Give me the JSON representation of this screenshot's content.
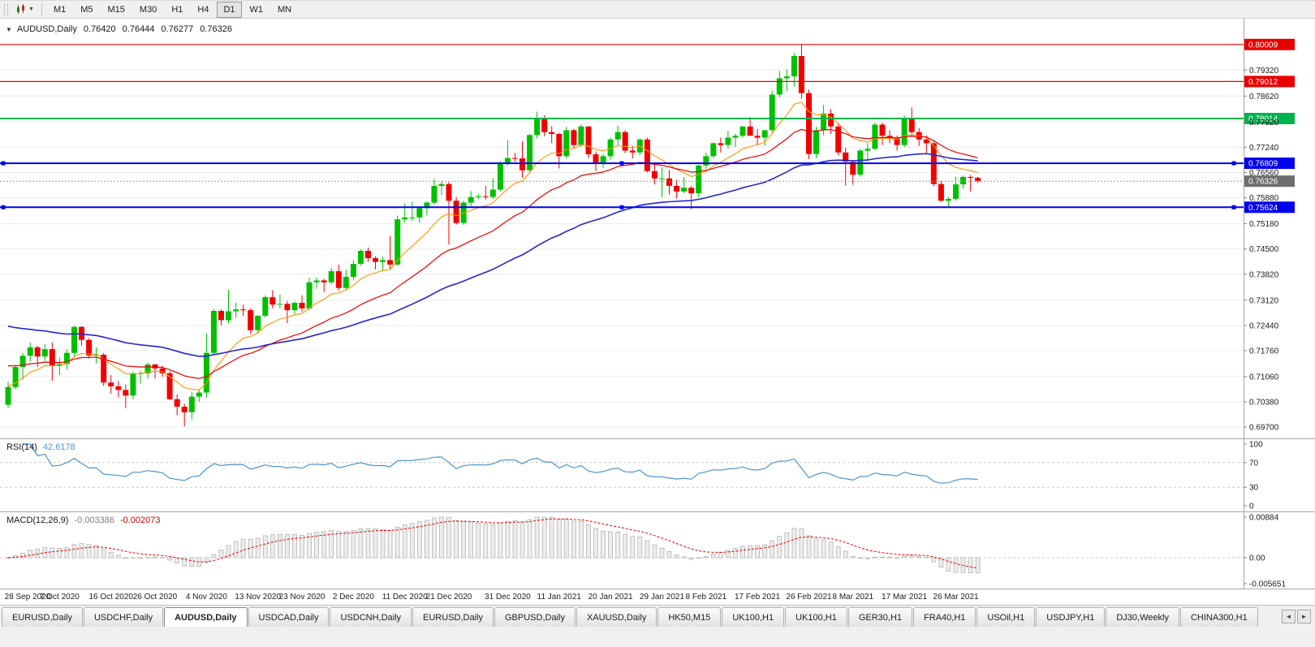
{
  "toolbar": {
    "timeframes": [
      "M1",
      "M5",
      "M15",
      "M30",
      "H1",
      "H4",
      "D1",
      "W1",
      "MN"
    ],
    "active_timeframe": "D1"
  },
  "chart_header": {
    "one_click_icon": "▼",
    "symbol": "AUDUSD,Daily",
    "open": "0.76420",
    "high": "0.76444",
    "low": "0.76277",
    "close": "0.76326"
  },
  "price_axis": {
    "ticks": [
      "0.79320",
      "0.78620",
      "0.77920",
      "0.77240",
      "0.76560",
      "0.75880",
      "0.75180",
      "0.74500",
      "0.73820",
      "0.73120",
      "0.72440",
      "0.71760",
      "0.71060",
      "0.70380",
      "0.69700"
    ]
  },
  "levels": [
    {
      "price": 0.80009,
      "label": "0.80009",
      "color": "#e80000",
      "width": 1.2,
      "selected": false
    },
    {
      "price": 0.79012,
      "label": "0.79012",
      "color": "#e80000",
      "width": 1.2,
      "selected": false
    },
    {
      "price": 0.78014,
      "label": "0.78014",
      "color": "#00b34d",
      "width": 2,
      "selected": false
    },
    {
      "price": 0.76809,
      "label": "0.76809",
      "color": "#0000ee",
      "width": 2,
      "selected": true
    },
    {
      "price": 0.75624,
      "label": "0.75624",
      "color": "#0000ee",
      "width": 2,
      "selected": true
    }
  ],
  "current_price": {
    "value": 0.76326,
    "label": "0.76326",
    "tag_color": "#6e6e6e",
    "line_color": "#9b9b9b"
  },
  "moving_averages": [
    {
      "name": "ma-fast-orange",
      "period": 10,
      "seed": 0.708,
      "color": "#ff9500",
      "width": 1.1
    },
    {
      "name": "ma-mid-red",
      "period": 25,
      "seed": 0.714,
      "color": "#e60000",
      "width": 1.2
    },
    {
      "name": "ma-slow-blue",
      "period": 55,
      "seed": 0.7248,
      "color": "#2626cc",
      "width": 1.6
    }
  ],
  "rsi": {
    "label": "RSI(14)",
    "value": "42.6178",
    "period": 14,
    "color": "#4f94cd",
    "guide_levels": [
      70,
      30
    ],
    "axis": [
      "100",
      "70",
      "30",
      "0"
    ]
  },
  "macd": {
    "label": "MACD(12,26,9)",
    "fast": 12,
    "slow": 26,
    "signal": 9,
    "main_value": "-0.003386",
    "signal_value": "-0.002073",
    "axis_max": "0.00884",
    "axis_zero": "0.00",
    "axis_min": "-0.005651",
    "max": 0.00884,
    "min": -0.005651,
    "hist_fill": "#ededed",
    "hist_stroke": "#b3b3b3",
    "signal_color": "#e80000"
  },
  "date_axis": [
    {
      "i": 0,
      "label": "28 Sep 2020"
    },
    {
      "i": 7,
      "label": "7 Oct 2020"
    },
    {
      "i": 14,
      "label": "16 Oct 2020"
    },
    {
      "i": 20,
      "label": "26 Oct 2020"
    },
    {
      "i": 27,
      "label": "4 Nov 2020"
    },
    {
      "i": 34,
      "label": "13 Nov 2020"
    },
    {
      "i": 40,
      "label": "23 Nov 2020"
    },
    {
      "i": 47,
      "label": "2 Dec 2020"
    },
    {
      "i": 54,
      "label": "11 Dec 2020"
    },
    {
      "i": 60,
      "label": "21 Dec 2020"
    },
    {
      "i": 68,
      "label": "31 Dec 2020"
    },
    {
      "i": 75,
      "label": "11 Jan 2021"
    },
    {
      "i": 82,
      "label": "20 Jan 2021"
    },
    {
      "i": 89,
      "label": "29 Jan 2021"
    },
    {
      "i": 95,
      "label": "8 Feb 2021"
    },
    {
      "i": 102,
      "label": "17 Feb 2021"
    },
    {
      "i": 109,
      "label": "26 Feb 2021"
    },
    {
      "i": 115,
      "label": "8 Mar 2021"
    },
    {
      "i": 122,
      "label": "17 Mar 2021"
    },
    {
      "i": 129,
      "label": "26 Mar 2021"
    }
  ],
  "tabs": {
    "active_index": 2,
    "left_arrow": "◄",
    "right_arrow": "►",
    "items": [
      "EURUSD,Daily",
      "USDCHF,Daily",
      "AUDUSD,Daily",
      "USDCAD,Daily",
      "USDCNH,Daily",
      "EURUSD,Daily",
      "GBPUSD,Daily",
      "XAUUSD,Daily",
      "HK50,M15",
      "UK100,H1",
      "UK100,H1",
      "GER30,H1",
      "FRA40,H1",
      "USOil,H1",
      "USDJPY,H1",
      "DJ30,Weekly",
      "CHINA300,H1"
    ]
  },
  "chart_data": {
    "type": "candlestick",
    "title": "AUDUSD,Daily",
    "up_color": "#00c000",
    "down_color": "#f00000",
    "y_range": [
      0.6944,
      0.8064
    ],
    "candles": [
      [
        0.703,
        0.7092,
        0.7021,
        0.7078
      ],
      [
        0.7078,
        0.7138,
        0.7072,
        0.7132
      ],
      [
        0.7132,
        0.717,
        0.7098,
        0.7162
      ],
      [
        0.7162,
        0.7198,
        0.7146,
        0.7185
      ],
      [
        0.7185,
        0.7189,
        0.7132,
        0.716
      ],
      [
        0.716,
        0.7194,
        0.7148,
        0.718
      ],
      [
        0.718,
        0.7198,
        0.7095,
        0.7135
      ],
      [
        0.7135,
        0.7158,
        0.711,
        0.714
      ],
      [
        0.714,
        0.718,
        0.7125,
        0.717
      ],
      [
        0.717,
        0.7243,
        0.716,
        0.724
      ],
      [
        0.724,
        0.7242,
        0.719,
        0.7205
      ],
      [
        0.7205,
        0.721,
        0.7155,
        0.7163
      ],
      [
        0.7163,
        0.7185,
        0.7142,
        0.7165
      ],
      [
        0.7165,
        0.717,
        0.7081,
        0.709
      ],
      [
        0.709,
        0.711,
        0.706,
        0.708
      ],
      [
        0.708,
        0.7094,
        0.705,
        0.707
      ],
      [
        0.707,
        0.7085,
        0.7021,
        0.7055
      ],
      [
        0.7055,
        0.712,
        0.7045,
        0.7115
      ],
      [
        0.7115,
        0.7122,
        0.7087,
        0.7115
      ],
      [
        0.7115,
        0.7144,
        0.7101,
        0.7139
      ],
      [
        0.7139,
        0.714,
        0.7101,
        0.7128
      ],
      [
        0.7128,
        0.7135,
        0.7106,
        0.7115
      ],
      [
        0.7115,
        0.7121,
        0.7043,
        0.7045
      ],
      [
        0.7045,
        0.7058,
        0.7002,
        0.7025
      ],
      [
        0.7025,
        0.7033,
        0.6972,
        0.701
      ],
      [
        0.701,
        0.7064,
        0.6991,
        0.7052
      ],
      [
        0.7052,
        0.7072,
        0.7038,
        0.7063
      ],
      [
        0.7063,
        0.7222,
        0.7049,
        0.717
      ],
      [
        0.717,
        0.7288,
        0.7164,
        0.7283
      ],
      [
        0.7283,
        0.7287,
        0.7244,
        0.7258
      ],
      [
        0.7258,
        0.734,
        0.725,
        0.7282
      ],
      [
        0.7282,
        0.7305,
        0.7265,
        0.7287
      ],
      [
        0.7287,
        0.73,
        0.727,
        0.7285
      ],
      [
        0.7285,
        0.729,
        0.722,
        0.7231
      ],
      [
        0.7231,
        0.7272,
        0.7222,
        0.727
      ],
      [
        0.727,
        0.7325,
        0.7265,
        0.732
      ],
      [
        0.732,
        0.7339,
        0.729,
        0.73
      ],
      [
        0.73,
        0.7327,
        0.7289,
        0.7302
      ],
      [
        0.7302,
        0.731,
        0.725,
        0.7285
      ],
      [
        0.7285,
        0.7309,
        0.7275,
        0.7305
      ],
      [
        0.7305,
        0.7325,
        0.7281,
        0.729
      ],
      [
        0.729,
        0.7372,
        0.7285,
        0.736
      ],
      [
        0.736,
        0.7373,
        0.7343,
        0.7365
      ],
      [
        0.7365,
        0.737,
        0.7334,
        0.736
      ],
      [
        0.736,
        0.7399,
        0.7355,
        0.739
      ],
      [
        0.739,
        0.7408,
        0.7338,
        0.7345
      ],
      [
        0.7345,
        0.7394,
        0.734,
        0.7375
      ],
      [
        0.7375,
        0.742,
        0.7365,
        0.741
      ],
      [
        0.741,
        0.7449,
        0.7405,
        0.7445
      ],
      [
        0.7445,
        0.7454,
        0.7415,
        0.7425
      ],
      [
        0.7425,
        0.743,
        0.7395,
        0.7415
      ],
      [
        0.7415,
        0.743,
        0.739,
        0.742
      ],
      [
        0.742,
        0.7485,
        0.7395,
        0.7408
      ],
      [
        0.7408,
        0.754,
        0.7405,
        0.753
      ],
      [
        0.753,
        0.7573,
        0.752,
        0.7535
      ],
      [
        0.7535,
        0.7578,
        0.7525,
        0.7535
      ],
      [
        0.7535,
        0.7564,
        0.752,
        0.756
      ],
      [
        0.756,
        0.7578,
        0.754,
        0.7575
      ],
      [
        0.7575,
        0.7639,
        0.757,
        0.762
      ],
      [
        0.762,
        0.7632,
        0.7595,
        0.7625
      ],
      [
        0.7625,
        0.763,
        0.7462,
        0.758
      ],
      [
        0.758,
        0.759,
        0.7516,
        0.752
      ],
      [
        0.752,
        0.758,
        0.7515,
        0.7575
      ],
      [
        0.7575,
        0.7606,
        0.7565,
        0.759
      ],
      [
        0.759,
        0.7598,
        0.7585,
        0.7592
      ],
      [
        0.7592,
        0.762,
        0.7583,
        0.759
      ],
      [
        0.759,
        0.764,
        0.7585,
        0.761
      ],
      [
        0.761,
        0.7686,
        0.7605,
        0.768
      ],
      [
        0.768,
        0.7743,
        0.7675,
        0.7695
      ],
      [
        0.7695,
        0.7709,
        0.7685,
        0.7694
      ],
      [
        0.7694,
        0.774,
        0.7642,
        0.7662
      ],
      [
        0.7662,
        0.776,
        0.7658,
        0.7757
      ],
      [
        0.7757,
        0.782,
        0.7748,
        0.78
      ],
      [
        0.78,
        0.781,
        0.7754,
        0.7765
      ],
      [
        0.7765,
        0.7781,
        0.7735,
        0.776
      ],
      [
        0.776,
        0.7763,
        0.7667,
        0.77
      ],
      [
        0.77,
        0.7779,
        0.7694,
        0.777
      ],
      [
        0.777,
        0.7774,
        0.7722,
        0.773
      ],
      [
        0.773,
        0.7785,
        0.7725,
        0.778
      ],
      [
        0.778,
        0.7781,
        0.7695,
        0.7705
      ],
      [
        0.7705,
        0.7713,
        0.766,
        0.768
      ],
      [
        0.768,
        0.7706,
        0.7668,
        0.77
      ],
      [
        0.77,
        0.775,
        0.769,
        0.7745
      ],
      [
        0.7745,
        0.7782,
        0.773,
        0.7765
      ],
      [
        0.7765,
        0.777,
        0.7708,
        0.7715
      ],
      [
        0.7715,
        0.7728,
        0.7694,
        0.771
      ],
      [
        0.771,
        0.7748,
        0.7703,
        0.7745
      ],
      [
        0.7745,
        0.775,
        0.7656,
        0.766
      ],
      [
        0.766,
        0.7682,
        0.7624,
        0.764
      ],
      [
        0.764,
        0.767,
        0.759,
        0.764
      ],
      [
        0.764,
        0.7663,
        0.7597,
        0.762
      ],
      [
        0.762,
        0.7637,
        0.7586,
        0.7605
      ],
      [
        0.7605,
        0.7644,
        0.76,
        0.7615
      ],
      [
        0.7615,
        0.762,
        0.7557,
        0.76
      ],
      [
        0.76,
        0.7677,
        0.759,
        0.7675
      ],
      [
        0.7675,
        0.771,
        0.7665,
        0.77
      ],
      [
        0.77,
        0.7737,
        0.7695,
        0.7735
      ],
      [
        0.7735,
        0.775,
        0.771,
        0.773
      ],
      [
        0.773,
        0.7769,
        0.772,
        0.775
      ],
      [
        0.775,
        0.776,
        0.7725,
        0.7755
      ],
      [
        0.7755,
        0.7781,
        0.775,
        0.778
      ],
      [
        0.778,
        0.7805,
        0.7755,
        0.7755
      ],
      [
        0.7755,
        0.7773,
        0.773,
        0.775
      ],
      [
        0.775,
        0.777,
        0.7728,
        0.777
      ],
      [
        0.777,
        0.7877,
        0.7765,
        0.7866
      ],
      [
        0.7866,
        0.793,
        0.7858,
        0.791
      ],
      [
        0.791,
        0.7934,
        0.7875,
        0.7915
      ],
      [
        0.7915,
        0.7978,
        0.7888,
        0.797
      ],
      [
        0.797,
        0.8001,
        0.7855,
        0.787
      ],
      [
        0.787,
        0.788,
        0.7692,
        0.7706
      ],
      [
        0.7706,
        0.7779,
        0.7695,
        0.777
      ],
      [
        0.777,
        0.7838,
        0.7756,
        0.7815
      ],
      [
        0.7815,
        0.7827,
        0.776,
        0.778
      ],
      [
        0.778,
        0.7787,
        0.7702,
        0.771
      ],
      [
        0.771,
        0.7723,
        0.7621,
        0.7685
      ],
      [
        0.7685,
        0.769,
        0.7623,
        0.765
      ],
      [
        0.765,
        0.772,
        0.7645,
        0.7715
      ],
      [
        0.7715,
        0.7735,
        0.7687,
        0.772
      ],
      [
        0.772,
        0.779,
        0.7715,
        0.7785
      ],
      [
        0.7785,
        0.779,
        0.773,
        0.7755
      ],
      [
        0.7755,
        0.777,
        0.7735,
        0.775
      ],
      [
        0.775,
        0.7756,
        0.7715,
        0.773
      ],
      [
        0.773,
        0.781,
        0.7725,
        0.78
      ],
      [
        0.78,
        0.7832,
        0.7755,
        0.7765
      ],
      [
        0.7765,
        0.7776,
        0.7728,
        0.7745
      ],
      [
        0.7745,
        0.7756,
        0.7707,
        0.7735
      ],
      [
        0.7735,
        0.774,
        0.7619,
        0.7625
      ],
      [
        0.7625,
        0.7633,
        0.7577,
        0.758
      ],
      [
        0.758,
        0.759,
        0.7562,
        0.7585
      ],
      [
        0.7585,
        0.7644,
        0.758,
        0.7624
      ],
      [
        0.7624,
        0.7648,
        0.7613,
        0.7644
      ],
      [
        0.7644,
        0.7649,
        0.7605,
        0.7642
      ],
      [
        0.7642,
        0.76444,
        0.76277,
        0.76326
      ]
    ]
  }
}
